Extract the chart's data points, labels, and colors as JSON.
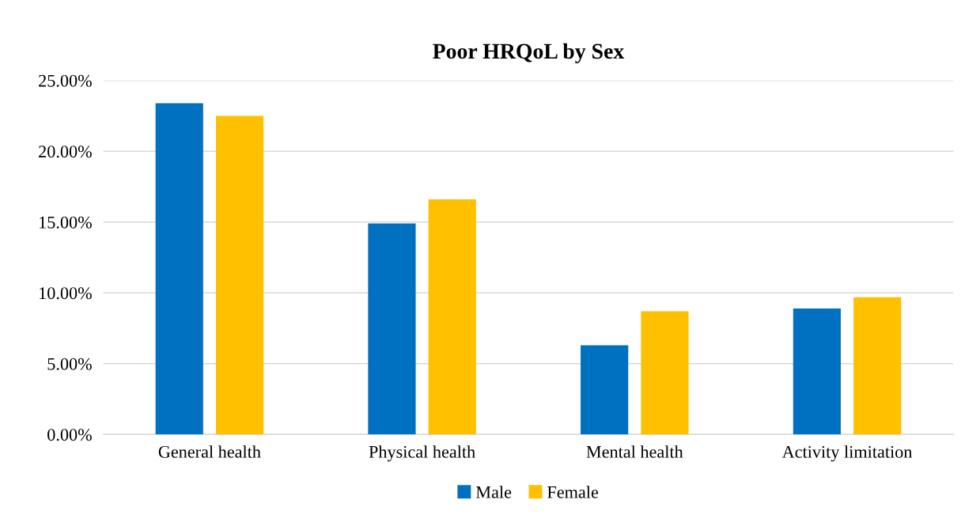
{
  "chart_data": {
    "type": "bar",
    "title": "Poor HRQoL by Sex",
    "categories": [
      "General health",
      "Physical health",
      "Mental health",
      "Activity limitation"
    ],
    "series": [
      {
        "name": "Male",
        "color": "#0070c0",
        "values": [
          23.4,
          14.9,
          6.3,
          8.9
        ]
      },
      {
        "name": "Female",
        "color": "#ffc000",
        "values": [
          22.5,
          16.6,
          8.7,
          9.7
        ]
      }
    ],
    "ylim": [
      0,
      25
    ],
    "yticks": [
      {
        "value": 0,
        "label": "0.00%"
      },
      {
        "value": 5,
        "label": "5.00%"
      },
      {
        "value": 10,
        "label": "10.00%"
      },
      {
        "value": 15,
        "label": "15.00%"
      },
      {
        "value": 20,
        "label": "20.00%"
      },
      {
        "value": 25,
        "label": "25.00%"
      }
    ],
    "grid": "y",
    "legend": "bottom"
  }
}
